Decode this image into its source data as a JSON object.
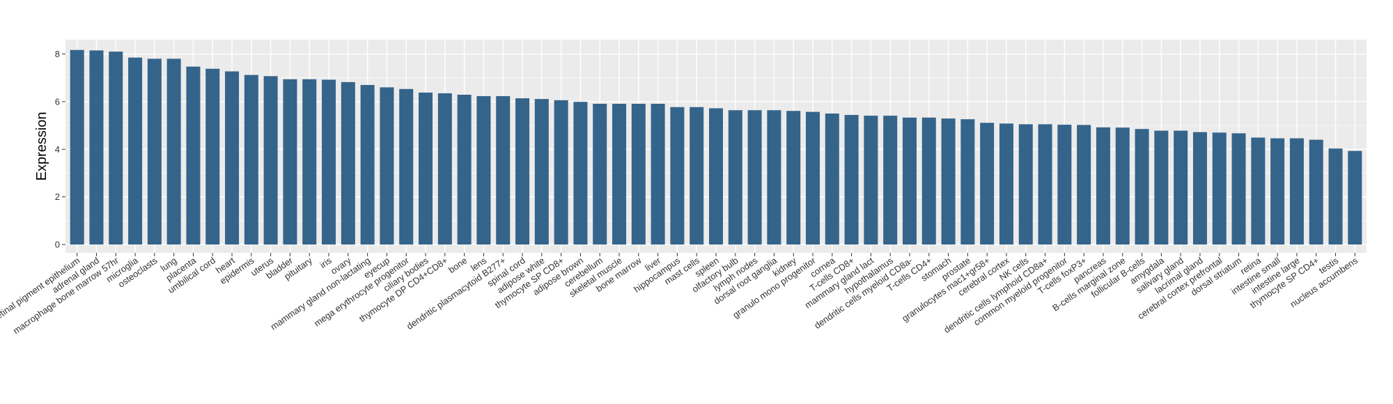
{
  "chart_data": {
    "type": "bar",
    "title": "",
    "xlabel": "",
    "ylabel": "Expression",
    "ylim": [
      -0.35,
      8.6
    ],
    "yticks": [
      0,
      2,
      4,
      6,
      8
    ],
    "grid": true,
    "legend": "none",
    "colors": {
      "bar": "#35648b",
      "panel": "#ebebeb",
      "grid": "#ffffff"
    },
    "categories": [
      "retinal pigment epithelium",
      "adrenal gland",
      "macrophage bone marrow 57hr",
      "microglia",
      "osteoclasts",
      "lung",
      "placenta",
      "umbilical cord",
      "heart",
      "epidermis",
      "uterus",
      "bladder",
      "pituitary",
      "iris",
      "ovary",
      "mammary gland non-lactating",
      "eyecup",
      "mega erythrocyte progenitor",
      "ciliary bodies",
      "thymocyte DP CD4+CD8+",
      "bone",
      "lens",
      "dendritic plasmacytoid B277+",
      "spinal cord",
      "adipose white",
      "thymocyte SP CD8+",
      "adipose brown",
      "cerebellum",
      "skeletal muscle",
      "bone marrow",
      "liver",
      "hippocampus",
      "mast cells",
      "spleen",
      "olfactory bulb",
      "lymph nodes",
      "dorsal root ganglia",
      "kidney",
      "granulo mono progenitor",
      "cornea",
      "T-cells CD8+",
      "mammary gland  lact",
      "hypothalamus",
      "dendritic cells myeloid CD8a-",
      "T-cells CD4+",
      "stomach",
      "prostate",
      "granulocytes mac1+gr58+",
      "cerebral cortex",
      "NK cells",
      "dendritic cells lymphoid CD8a+",
      "common myeloid progenitor",
      "T-cells foxP3+",
      "pancreas",
      "B-cells marginal zone",
      "follicular B-cells",
      "amygdala",
      "salivary gland",
      "lacrimal gland",
      "cerebral cortex prefrontal",
      "dorsal striatum",
      "retina",
      "intestine small",
      "intestine large",
      "thymocyte SP CD4+",
      "testis",
      "nucleus accumbens"
    ],
    "values": [
      8.17,
      8.15,
      8.1,
      7.85,
      7.8,
      7.8,
      7.47,
      7.38,
      7.27,
      7.12,
      7.07,
      6.94,
      6.94,
      6.92,
      6.82,
      6.7,
      6.6,
      6.53,
      6.38,
      6.35,
      6.29,
      6.23,
      6.23,
      6.14,
      6.11,
      6.06,
      5.99,
      5.91,
      5.91,
      5.91,
      5.91,
      5.77,
      5.77,
      5.72,
      5.64,
      5.64,
      5.64,
      5.61,
      5.57,
      5.5,
      5.44,
      5.41,
      5.41,
      5.33,
      5.33,
      5.29,
      5.26,
      5.11,
      5.08,
      5.05,
      5.05,
      5.03,
      5.02,
      4.92,
      4.91,
      4.85,
      4.78,
      4.78,
      4.72,
      4.7,
      4.67,
      4.49,
      4.46,
      4.46,
      4.4,
      4.03,
      3.93
    ]
  }
}
